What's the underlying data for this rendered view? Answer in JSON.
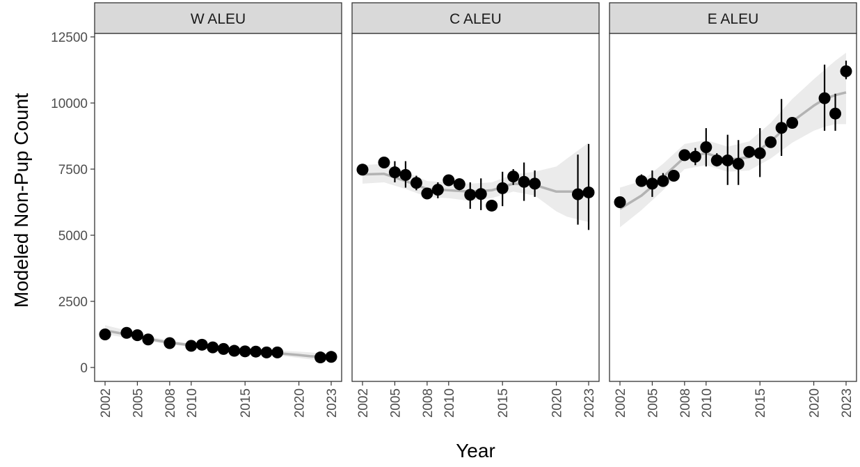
{
  "chart_data": {
    "type": "scatter",
    "xlabel": "Year",
    "ylabel": "Modeled Non-Pup Count",
    "ylim": [
      -250,
      13500
    ],
    "xlim": [
      2001.0,
      2024.0
    ],
    "y_ticks": [
      0,
      2500,
      5000,
      7500,
      10000,
      12500
    ],
    "y_tick_labels": [
      "0",
      "2500",
      "5000",
      "7500",
      "10000",
      "12500"
    ],
    "x_ticks": [
      2002,
      2005,
      2008,
      2010,
      2015,
      2020,
      2023
    ],
    "x_tick_labels": [
      "2002",
      "2005",
      "2008",
      "2010",
      "2015",
      "2020",
      "2023"
    ],
    "grid": false,
    "legend": "none",
    "colors": {
      "point": "#000000",
      "errorbar": "#000000",
      "trend_line": "#b3b3b3",
      "ribbon": "#ebebeb",
      "strip_bg": "#d9d9d9",
      "panel_border": "#333333"
    },
    "panels": [
      {
        "title": "W ALEU",
        "points": [
          {
            "x": 2002,
            "y": 1250,
            "lo": 1150,
            "hi": 1350
          },
          {
            "x": 2004,
            "y": 1310,
            "lo": 1230,
            "hi": 1390
          },
          {
            "x": 2005,
            "y": 1220,
            "lo": 1150,
            "hi": 1300
          },
          {
            "x": 2006,
            "y": 1060,
            "lo": 990,
            "hi": 1130
          },
          {
            "x": 2008,
            "y": 920,
            "lo": 860,
            "hi": 980
          },
          {
            "x": 2010,
            "y": 820,
            "lo": 760,
            "hi": 880
          },
          {
            "x": 2011,
            "y": 860,
            "lo": 800,
            "hi": 920
          },
          {
            "x": 2012,
            "y": 760,
            "lo": 700,
            "hi": 820
          },
          {
            "x": 2013,
            "y": 700,
            "lo": 640,
            "hi": 760
          },
          {
            "x": 2014,
            "y": 630,
            "lo": 580,
            "hi": 690
          },
          {
            "x": 2015,
            "y": 610,
            "lo": 560,
            "hi": 670
          },
          {
            "x": 2016,
            "y": 600,
            "lo": 550,
            "hi": 650
          },
          {
            "x": 2017,
            "y": 570,
            "lo": 520,
            "hi": 620
          },
          {
            "x": 2018,
            "y": 570,
            "lo": 520,
            "hi": 620
          },
          {
            "x": 2022,
            "y": 380,
            "lo": 330,
            "hi": 430
          },
          {
            "x": 2023,
            "y": 400,
            "lo": 350,
            "hi": 450
          }
        ],
        "trend": [
          {
            "x": 2002,
            "y": 1400,
            "lo": 1250,
            "hi": 1600
          },
          {
            "x": 2004,
            "y": 1250,
            "lo": 1130,
            "hi": 1400
          },
          {
            "x": 2006,
            "y": 1080,
            "lo": 990,
            "hi": 1180
          },
          {
            "x": 2008,
            "y": 940,
            "lo": 870,
            "hi": 1020
          },
          {
            "x": 2010,
            "y": 840,
            "lo": 780,
            "hi": 910
          },
          {
            "x": 2012,
            "y": 740,
            "lo": 680,
            "hi": 810
          },
          {
            "x": 2014,
            "y": 660,
            "lo": 600,
            "hi": 730
          },
          {
            "x": 2016,
            "y": 600,
            "lo": 530,
            "hi": 680
          },
          {
            "x": 2018,
            "y": 540,
            "lo": 460,
            "hi": 640
          },
          {
            "x": 2020,
            "y": 470,
            "lo": 360,
            "hi": 600
          },
          {
            "x": 2021,
            "y": 430,
            "lo": 310,
            "hi": 570
          },
          {
            "x": 2022,
            "y": 400,
            "lo": 290,
            "hi": 540
          },
          {
            "x": 2023,
            "y": 390,
            "lo": 270,
            "hi": 530
          }
        ]
      },
      {
        "title": "C ALEU",
        "points": [
          {
            "x": 2002,
            "y": 7480,
            "lo": 7300,
            "hi": 7700
          },
          {
            "x": 2004,
            "y": 7750,
            "lo": 7600,
            "hi": 7900
          },
          {
            "x": 2005,
            "y": 7380,
            "lo": 7000,
            "hi": 7800
          },
          {
            "x": 2006,
            "y": 7280,
            "lo": 6800,
            "hi": 7800
          },
          {
            "x": 2007,
            "y": 6980,
            "lo": 6700,
            "hi": 7250
          },
          {
            "x": 2008,
            "y": 6580,
            "lo": 6400,
            "hi": 6750
          },
          {
            "x": 2009,
            "y": 6720,
            "lo": 6400,
            "hi": 7000
          },
          {
            "x": 2010,
            "y": 7080,
            "lo": 6900,
            "hi": 7250
          },
          {
            "x": 2011,
            "y": 6930,
            "lo": 6700,
            "hi": 7150
          },
          {
            "x": 2012,
            "y": 6530,
            "lo": 6000,
            "hi": 7000
          },
          {
            "x": 2013,
            "y": 6560,
            "lo": 5950,
            "hi": 7150
          },
          {
            "x": 2014,
            "y": 6120,
            "lo": 5950,
            "hi": 6300
          },
          {
            "x": 2015,
            "y": 6780,
            "lo": 6100,
            "hi": 7400
          },
          {
            "x": 2016,
            "y": 7220,
            "lo": 6900,
            "hi": 7500
          },
          {
            "x": 2017,
            "y": 7020,
            "lo": 6300,
            "hi": 7750
          },
          {
            "x": 2018,
            "y": 6950,
            "lo": 6450,
            "hi": 7450
          },
          {
            "x": 2022,
            "y": 6550,
            "lo": 5400,
            "hi": 8050
          },
          {
            "x": 2023,
            "y": 6620,
            "lo": 5200,
            "hi": 8450
          }
        ],
        "trend": [
          {
            "x": 2002,
            "y": 7300,
            "lo": 6950,
            "hi": 7650
          },
          {
            "x": 2004,
            "y": 7320,
            "lo": 7000,
            "hi": 7700
          },
          {
            "x": 2006,
            "y": 7050,
            "lo": 6750,
            "hi": 7400
          },
          {
            "x": 2008,
            "y": 6750,
            "lo": 6450,
            "hi": 7050
          },
          {
            "x": 2010,
            "y": 6700,
            "lo": 6400,
            "hi": 7000
          },
          {
            "x": 2012,
            "y": 6650,
            "lo": 6300,
            "hi": 6950
          },
          {
            "x": 2014,
            "y": 6700,
            "lo": 6400,
            "hi": 7000
          },
          {
            "x": 2016,
            "y": 6950,
            "lo": 6650,
            "hi": 7300
          },
          {
            "x": 2018,
            "y": 6900,
            "lo": 6500,
            "hi": 7400
          },
          {
            "x": 2020,
            "y": 6650,
            "lo": 5900,
            "hi": 7600
          },
          {
            "x": 2021,
            "y": 6650,
            "lo": 5700,
            "hi": 7900
          },
          {
            "x": 2022,
            "y": 6650,
            "lo": 5600,
            "hi": 8200
          },
          {
            "x": 2023,
            "y": 6650,
            "lo": 5500,
            "hi": 8500
          }
        ]
      },
      {
        "title": "E ALEU",
        "points": [
          {
            "x": 2002,
            "y": 6250,
            "lo": 6100,
            "hi": 6400
          },
          {
            "x": 2004,
            "y": 7050,
            "lo": 6900,
            "hi": 7300
          },
          {
            "x": 2005,
            "y": 6950,
            "lo": 6450,
            "hi": 7450
          },
          {
            "x": 2006,
            "y": 7050,
            "lo": 6850,
            "hi": 7350
          },
          {
            "x": 2007,
            "y": 7250,
            "lo": 7100,
            "hi": 7400
          },
          {
            "x": 2008,
            "y": 8030,
            "lo": 7900,
            "hi": 8200
          },
          {
            "x": 2009,
            "y": 7970,
            "lo": 7650,
            "hi": 8300
          },
          {
            "x": 2010,
            "y": 8330,
            "lo": 7600,
            "hi": 9050
          },
          {
            "x": 2011,
            "y": 7830,
            "lo": 7600,
            "hi": 8100
          },
          {
            "x": 2012,
            "y": 7830,
            "lo": 6900,
            "hi": 8800
          },
          {
            "x": 2013,
            "y": 7700,
            "lo": 6900,
            "hi": 8600
          },
          {
            "x": 2014,
            "y": 8150,
            "lo": 8000,
            "hi": 8300
          },
          {
            "x": 2015,
            "y": 8100,
            "lo": 7200,
            "hi": 9050
          },
          {
            "x": 2016,
            "y": 8520,
            "lo": 8400,
            "hi": 8700
          },
          {
            "x": 2017,
            "y": 9060,
            "lo": 8000,
            "hi": 10150
          },
          {
            "x": 2018,
            "y": 9250,
            "lo": 9100,
            "hi": 9400
          },
          {
            "x": 2021,
            "y": 10180,
            "lo": 8950,
            "hi": 11450
          },
          {
            "x": 2022,
            "y": 9600,
            "lo": 8950,
            "hi": 10350
          },
          {
            "x": 2023,
            "y": 11200,
            "lo": 10900,
            "hi": 11600
          }
        ],
        "trend": [
          {
            "x": 2002,
            "y": 6000,
            "lo": 5300,
            "hi": 6800
          },
          {
            "x": 2004,
            "y": 6500,
            "lo": 5950,
            "hi": 7050
          },
          {
            "x": 2006,
            "y": 7200,
            "lo": 6700,
            "hi": 7700
          },
          {
            "x": 2008,
            "y": 7950,
            "lo": 7500,
            "hi": 8450
          },
          {
            "x": 2010,
            "y": 8100,
            "lo": 7650,
            "hi": 8600
          },
          {
            "x": 2012,
            "y": 7850,
            "lo": 7400,
            "hi": 8350
          },
          {
            "x": 2014,
            "y": 7950,
            "lo": 7450,
            "hi": 8550
          },
          {
            "x": 2016,
            "y": 8550,
            "lo": 7900,
            "hi": 9250
          },
          {
            "x": 2018,
            "y": 9300,
            "lo": 8500,
            "hi": 10150
          },
          {
            "x": 2020,
            "y": 9900,
            "lo": 8950,
            "hi": 10900
          },
          {
            "x": 2021,
            "y": 10150,
            "lo": 9100,
            "hi": 11250
          },
          {
            "x": 2022,
            "y": 10300,
            "lo": 9200,
            "hi": 11600
          },
          {
            "x": 2023,
            "y": 10400,
            "lo": 9200,
            "hi": 11900
          }
        ]
      }
    ]
  }
}
